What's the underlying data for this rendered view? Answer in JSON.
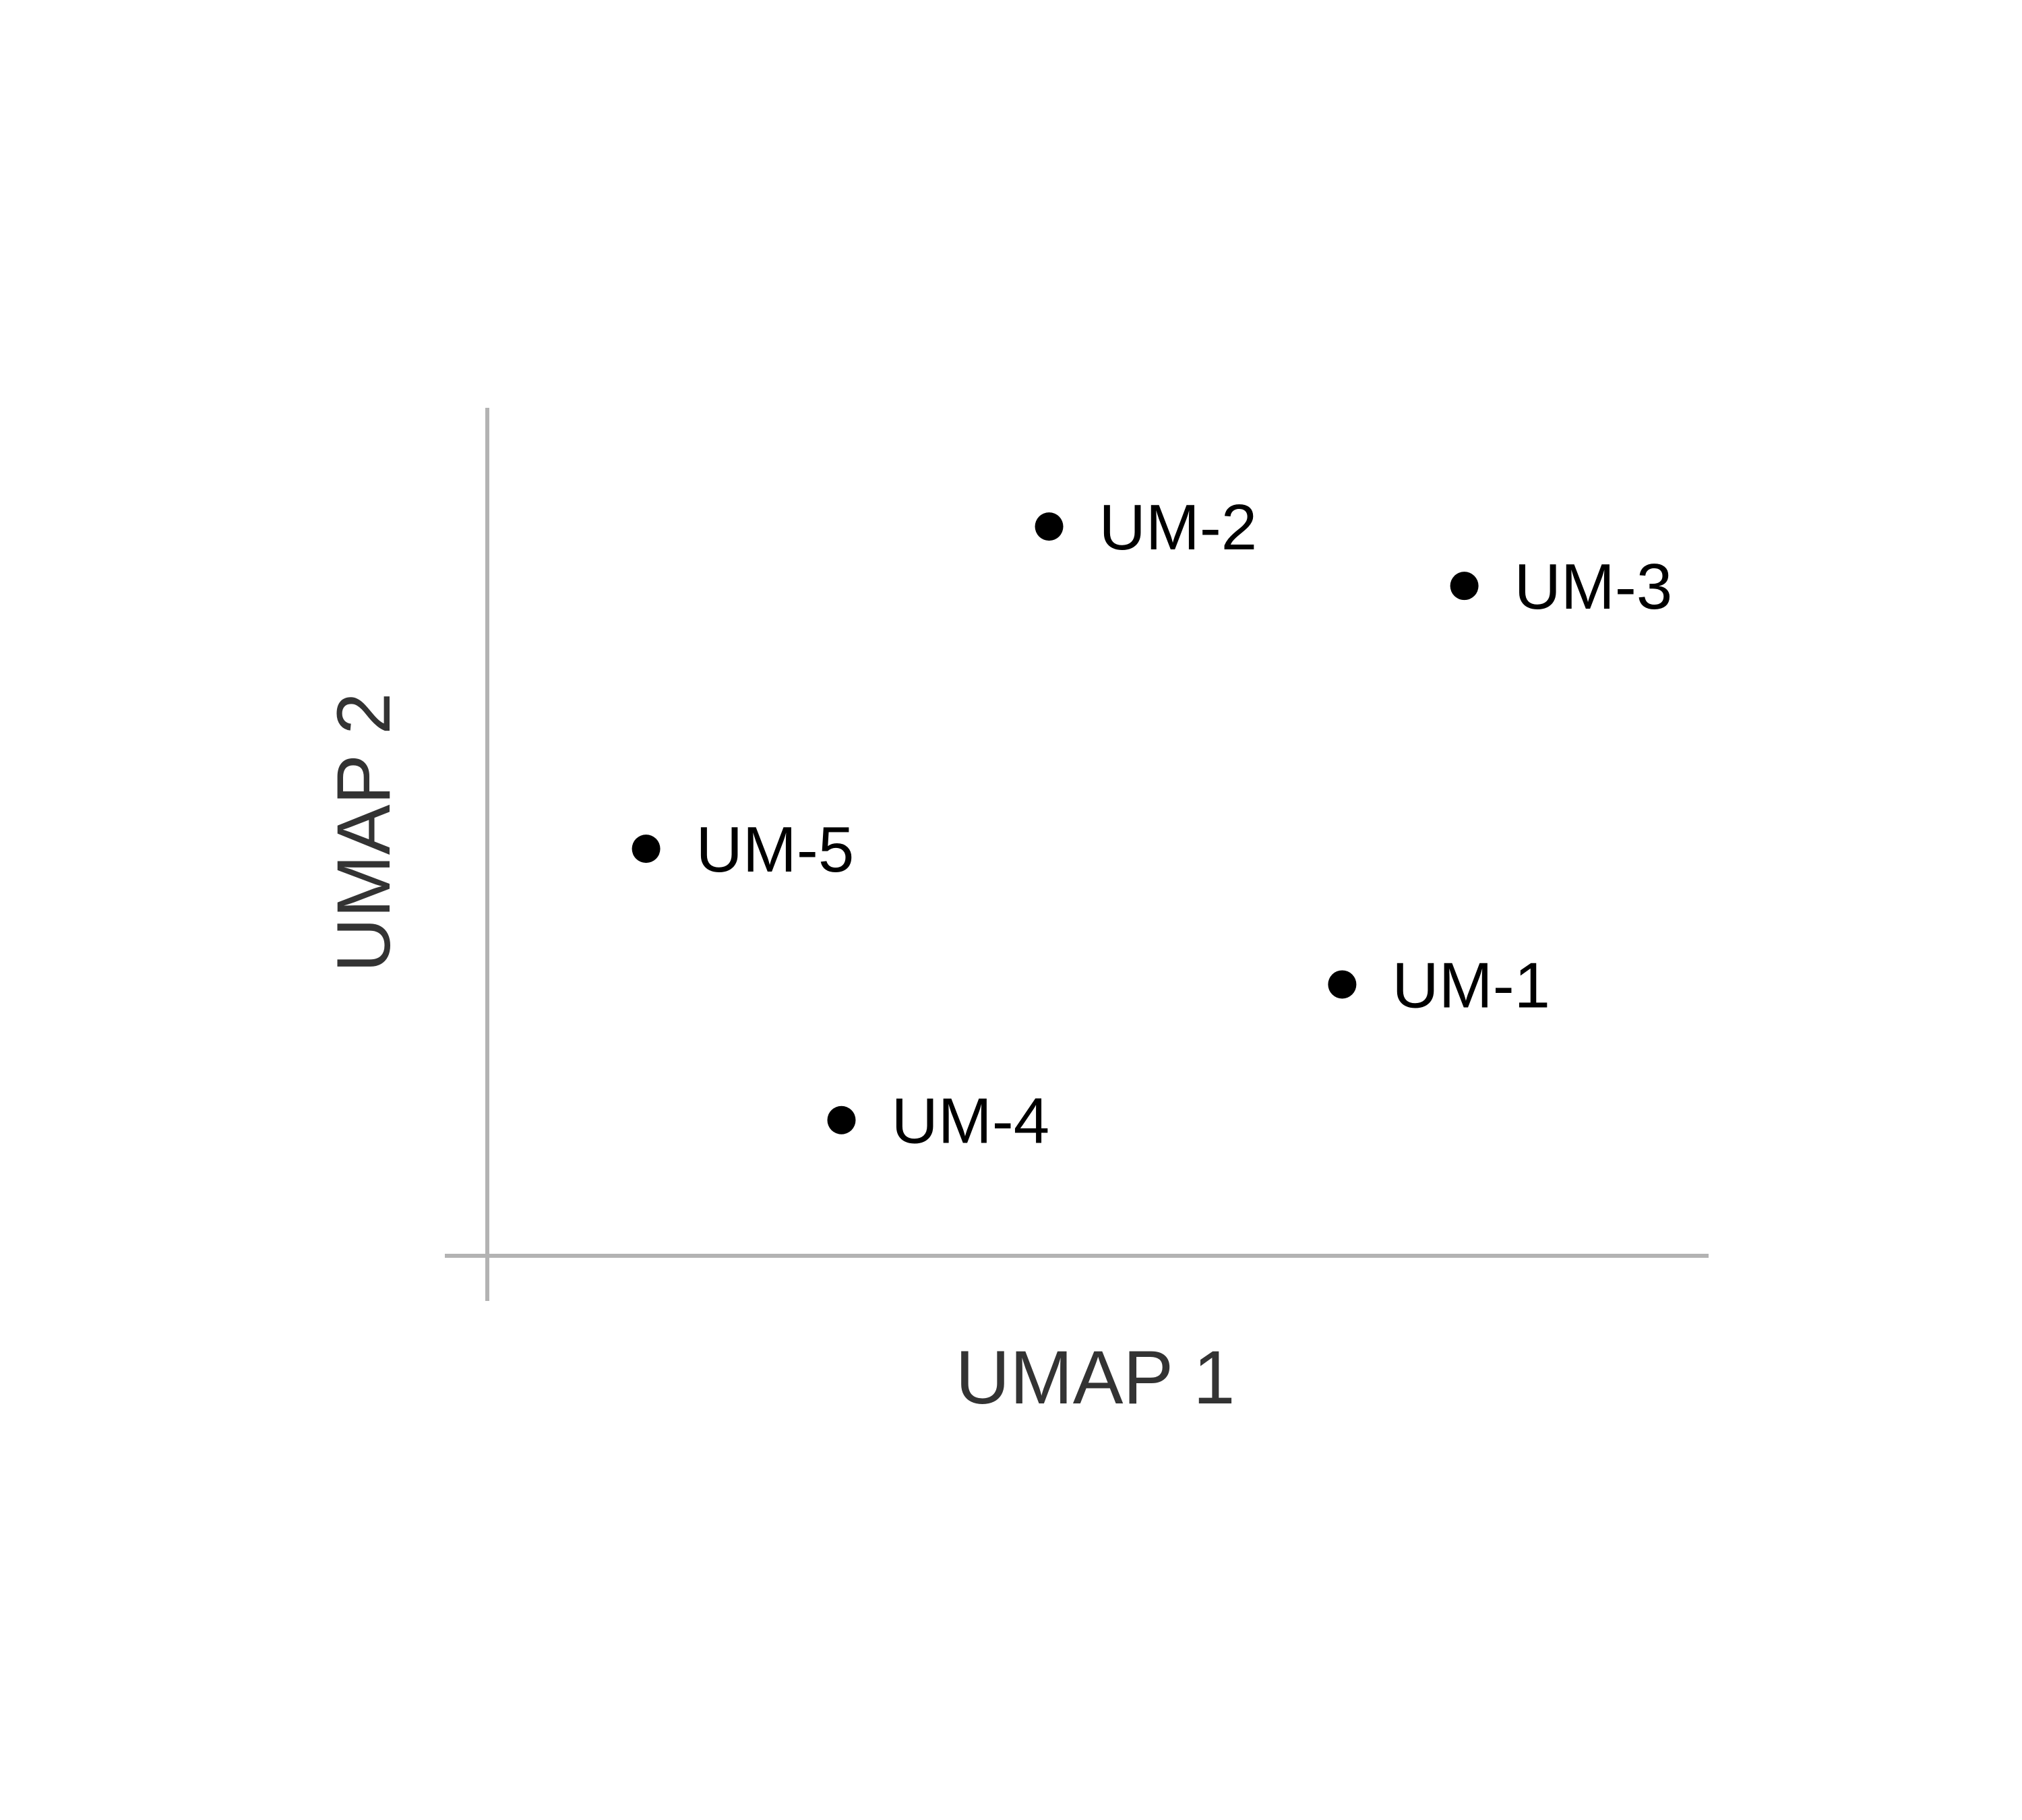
{
  "chart_data": {
    "type": "scatter",
    "title": "",
    "xlabel": "UMAP 1",
    "ylabel": "UMAP 2",
    "grid": false,
    "legend": false,
    "xlim": [
      0,
      10
    ],
    "ylim": [
      0,
      10
    ],
    "points": [
      {
        "label": "UM-1",
        "x": 7.0,
        "y": 3.2
      },
      {
        "label": "UM-2",
        "x": 4.6,
        "y": 8.6
      },
      {
        "label": "UM-3",
        "x": 8.0,
        "y": 7.9
      },
      {
        "label": "UM-4",
        "x": 2.9,
        "y": 1.6
      },
      {
        "label": "UM-5",
        "x": 1.3,
        "y": 4.8
      }
    ],
    "point_color": "#000000",
    "axis_color": "#b3b3b3"
  }
}
